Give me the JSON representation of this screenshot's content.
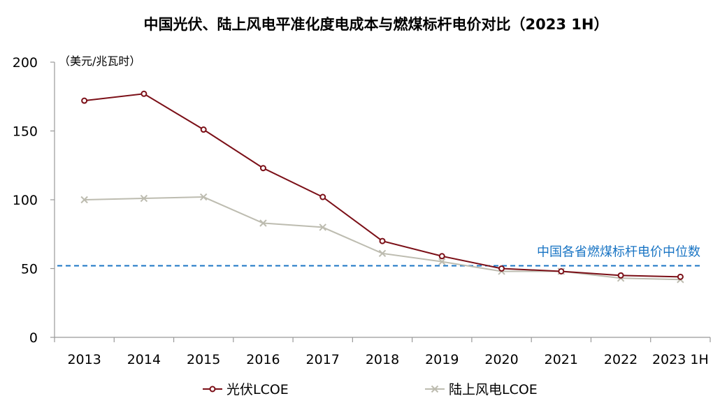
{
  "chart_data": {
    "type": "line",
    "title": "中国光伏、陆上风电平准化度电成本与燃煤标杆电价对比（2023 1H）",
    "ylabel": "（美元/兆瓦时）",
    "xlabel": "",
    "categories": [
      "2013",
      "2014",
      "2015",
      "2016",
      "2017",
      "2018",
      "2019",
      "2020",
      "2021",
      "2022",
      "2023 1H"
    ],
    "ylim": [
      0,
      200
    ],
    "yticks": [
      0,
      50,
      100,
      150,
      200
    ],
    "series": [
      {
        "name": "光伏LCOE",
        "color": "#7b0f17",
        "marker": "circle",
        "values": [
          172,
          177,
          151,
          123,
          102,
          70,
          59,
          50,
          48,
          45,
          44
        ]
      },
      {
        "name": "陆上风电LCOE",
        "color": "#bdbcb0",
        "marker": "x",
        "values": [
          100,
          101,
          102,
          83,
          80,
          61,
          55,
          48,
          48,
          43,
          42
        ]
      }
    ],
    "reference_line": {
      "label": "中国各省燃煤标杆电价中位数",
      "value": 52,
      "color": "#1a75c4",
      "style": "dashed"
    },
    "legend_position": "bottom",
    "grid": false
  }
}
